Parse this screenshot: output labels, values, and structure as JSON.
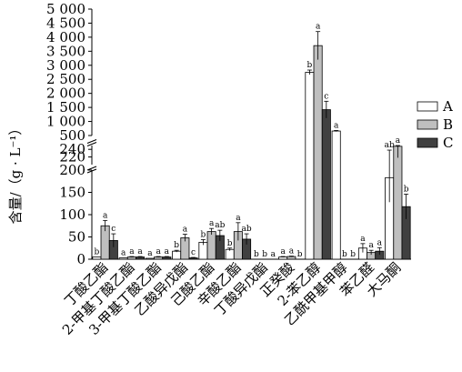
{
  "chart_data": {
    "type": "bar",
    "title": "",
    "xlabel": "",
    "ylabel": "含量/（g · L⁻¹）",
    "categories": [
      "丁酸乙酯",
      "2-甲基丁酸乙酯",
      "3-甲基丁酸乙酯",
      "乙酸异戊酯",
      "己酸乙酯",
      "辛酸乙酯",
      "丁酸异戊酯",
      "正癸酸",
      "2-苯乙醇",
      "乙酰甲基甲醇",
      "苯乙醛",
      "大马酮"
    ],
    "series": [
      {
        "name": "A",
        "color": "#ffffff",
        "values": [
          5,
          3,
          2,
          18,
          38,
          22,
          0,
          5,
          2750,
          660,
          25,
          183
        ],
        "errors": [
          0,
          0,
          0,
          2,
          6,
          3,
          0,
          1,
          80,
          20,
          10,
          55
        ],
        "sig": [
          "b",
          "a",
          "a",
          "b",
          "b",
          "b",
          "b",
          "a",
          "b",
          "a",
          "a",
          "ab"
        ]
      },
      {
        "name": "B",
        "color": "#bfbfbf",
        "values": [
          75,
          5,
          5,
          48,
          62,
          62,
          0,
          6,
          3700,
          0,
          15,
          248
        ],
        "errors": [
          12,
          1,
          1,
          8,
          7,
          20,
          0,
          1,
          500,
          0,
          5,
          30
        ],
        "sig": [
          "a",
          "a",
          "a",
          "a",
          "a",
          "a",
          "b",
          "a",
          "a",
          "b",
          "a",
          "a"
        ]
      },
      {
        "name": "C",
        "color": "#404040",
        "values": [
          42,
          5,
          5,
          3,
          53,
          45,
          0,
          0,
          1420,
          0,
          18,
          118
        ],
        "errors": [
          15,
          1,
          1,
          1,
          12,
          12,
          0,
          0,
          300,
          0,
          8,
          28
        ],
        "sig": [
          "c",
          "a",
          "a",
          "c",
          "ab",
          "ab",
          "a",
          "b",
          "c",
          "b",
          "a",
          "b"
        ]
      }
    ],
    "y_segments": [
      {
        "range": [
          0,
          200
        ],
        "ticks": [
          0,
          50,
          100,
          150
        ]
      },
      {
        "range": [
          200,
          250
        ],
        "ticks": [
          200,
          220,
          240
        ]
      },
      {
        "range": [
          500,
          5000
        ],
        "ticks": [
          500,
          1000,
          1500,
          2000,
          2500,
          3000,
          3500,
          4000,
          4500,
          5000
        ]
      }
    ],
    "y_tick_labels": {
      "0": "0",
      "50": "50",
      "100": "100",
      "150": "150",
      "200": "200",
      "220": "220",
      "240": "240",
      "500": "500",
      "1000": "1 000",
      "1500": "1 500",
      "2000": "2 000",
      "2500": "2 500",
      "3000": "3 000",
      "3500": "3 500",
      "4000": "4 000",
      "4500": "4 500",
      "5000": "5 000"
    },
    "legend": {
      "position": "right",
      "entries": [
        "A",
        "B",
        "C"
      ]
    },
    "grid": false
  }
}
